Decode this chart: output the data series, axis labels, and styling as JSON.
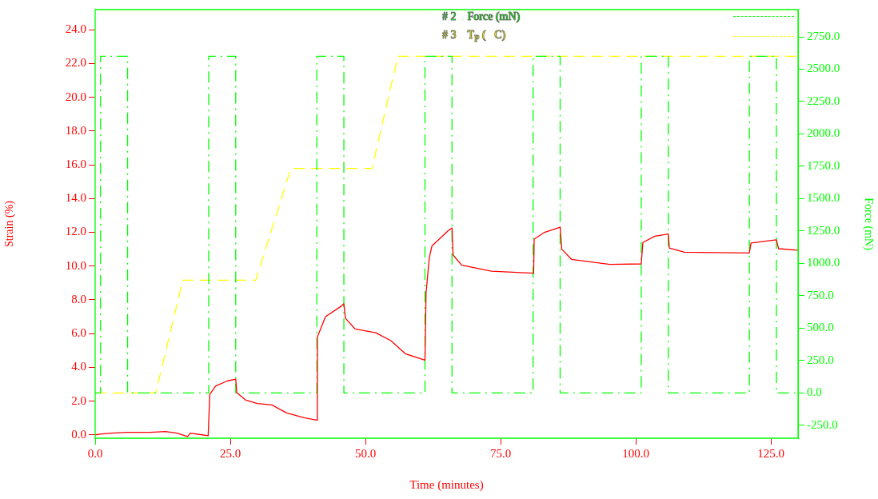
{
  "chart_data": {
    "type": "line",
    "xlabel": "Time (minutes)",
    "ylabel": "Strain (%)",
    "y2label": "Force (mN)",
    "xlim": [
      0,
      130
    ],
    "xticks": [
      {
        "value": 0,
        "label": "0.0"
      },
      {
        "value": 25,
        "label": "25.0"
      },
      {
        "value": 50,
        "label": "50.0"
      },
      {
        "value": 75,
        "label": "75.0"
      },
      {
        "value": 100,
        "label": "100.0"
      },
      {
        "value": 125,
        "label": "125.0"
      }
    ],
    "ylim": [
      -0.2,
      25.2
    ],
    "yticks": [
      {
        "value": 0,
        "label": "0.0"
      },
      {
        "value": 2,
        "label": "2.0"
      },
      {
        "value": 4,
        "label": "4.0"
      },
      {
        "value": 6,
        "label": "6.0"
      },
      {
        "value": 8,
        "label": "8.0"
      },
      {
        "value": 10,
        "label": "10.0"
      },
      {
        "value": 12,
        "label": "12.0"
      },
      {
        "value": 14,
        "label": "14.0"
      },
      {
        "value": 16,
        "label": "16.0"
      },
      {
        "value": 18,
        "label": "18.0"
      },
      {
        "value": 20,
        "label": "20.0"
      },
      {
        "value": 22,
        "label": "22.0"
      },
      {
        "value": 24,
        "label": "24.0"
      }
    ],
    "y2lim": [
      -350,
      2960
    ],
    "y2ticks": [
      {
        "value": -250,
        "label": "-250.0"
      },
      {
        "value": 0,
        "label": "0.0"
      },
      {
        "value": 250,
        "label": "250.0"
      },
      {
        "value": 500,
        "label": "500.0"
      },
      {
        "value": 750,
        "label": "750.0"
      },
      {
        "value": 1000,
        "label": "1000.0"
      },
      {
        "value": 1250,
        "label": "1250.0"
      },
      {
        "value": 1500,
        "label": "1500.0"
      },
      {
        "value": 1750,
        "label": "1750.0"
      },
      {
        "value": 2000,
        "label": "2000.0"
      },
      {
        "value": 2250,
        "label": "2250.0"
      },
      {
        "value": 2500,
        "label": "2500.0"
      },
      {
        "value": 2750,
        "label": "2750.0"
      }
    ],
    "grid": false,
    "legend": "top right",
    "marker": "none",
    "series": [
      {
        "color": "#ff0000",
        "line_style": "solid",
        "x": [
          0,
          1.2,
          3.1,
          5.8,
          10.2,
          13,
          15.1,
          17.1,
          17.6,
          20.9,
          21.2,
          22.3,
          24.5,
          26,
          26.2,
          27.8,
          30,
          32.7,
          35.4,
          38.8,
          41,
          41.1,
          42.6,
          45.4,
          46,
          46.3,
          48.1,
          51.9,
          54.7,
          57.4,
          61,
          61.2,
          61.8,
          62.3,
          65.3,
          66,
          66.2,
          67.8,
          73.3,
          81.1,
          81.2,
          83.1,
          86,
          86.3,
          88.1,
          95.2,
          101,
          101.3,
          103.5,
          106,
          106.2,
          109,
          121,
          121.3,
          126,
          126.4,
          130
        ],
        "values": [
          0,
          0.05,
          0.1,
          0.15,
          0.15,
          0.2,
          0.1,
          -0.1,
          0.1,
          -0.05,
          2.4,
          2.9,
          3.2,
          3.3,
          2.5,
          2.07,
          1.86,
          1.77,
          1.3,
          1.0,
          0.87,
          5.8,
          7.0,
          7.6,
          7.77,
          6.9,
          6.27,
          6.05,
          5.58,
          4.8,
          4.43,
          8.4,
          10.5,
          11.2,
          12.1,
          12.26,
          10.65,
          10.05,
          9.7,
          9.58,
          11.6,
          12.0,
          12.31,
          11.0,
          10.4,
          10.1,
          10.13,
          11.4,
          11.77,
          11.9,
          11.07,
          10.82,
          10.78,
          11.37,
          11.56,
          11.03,
          10.94
        ]
      },
      {
        "name": "# 2    Force (mN)",
        "color": "#00ff00",
        "axis": "y2",
        "line_style": "dashdot",
        "x": [
          0,
          1,
          1,
          6,
          6,
          21,
          21,
          26,
          26,
          41,
          41,
          46,
          46,
          61,
          61,
          66,
          66,
          81,
          81,
          86,
          86,
          101,
          101,
          106,
          106,
          121,
          121,
          126,
          126,
          129.5
        ],
        "values": [
          0,
          0,
          2600,
          2600,
          0,
          0,
          2600,
          2600,
          0,
          0,
          2600,
          2600,
          0,
          0,
          2600,
          2600,
          0,
          0,
          2600,
          2600,
          0,
          0,
          2600,
          2600,
          0,
          0,
          2600,
          2600,
          0,
          0
        ]
      },
      {
        "name": "# 3    T$_{P}$ (   C)",
        "color": "#ffff00",
        "axis": "y2",
        "line_style": "dashed",
        "x": [
          0,
          11.2,
          16.2,
          29.7,
          36.2,
          51.2,
          56,
          130
        ],
        "values": [
          0,
          0,
          870,
          870,
          1734,
          1734,
          2600,
          2600
        ]
      }
    ]
  }
}
